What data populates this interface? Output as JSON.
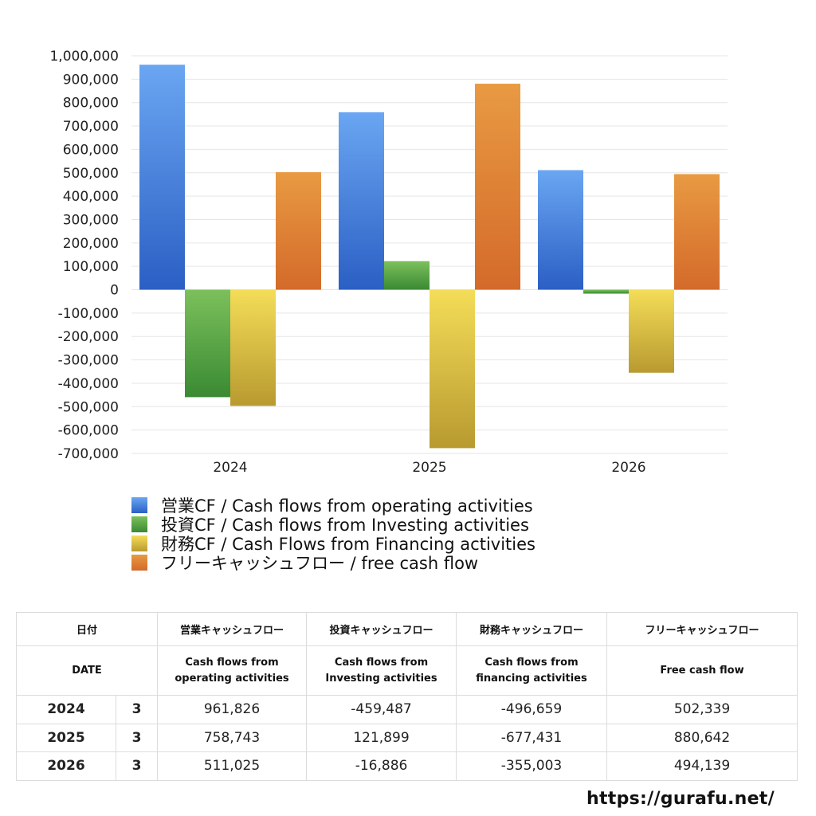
{
  "chart_data": {
    "type": "bar",
    "categories": [
      "2024",
      "2025",
      "2026"
    ],
    "series": [
      {
        "name": "営業CF / Cash flows from operating activities",
        "values": [
          961826,
          758743,
          511025
        ]
      },
      {
        "name": "投資CF / Cash flows from Investing activities",
        "values": [
          -459487,
          121899,
          -16886
        ]
      },
      {
        "name": "財務CF / Cash Flows from Financing activities",
        "values": [
          -496659,
          -677431,
          -355003
        ]
      },
      {
        "name": "フリーキャッシュフロー / free cash flow",
        "values": [
          502339,
          880642,
          494139
        ]
      }
    ],
    "ylim": [
      -700000,
      1000000
    ],
    "yticks": [
      "1,000,000",
      "900,000",
      "800,000",
      "700,000",
      "600,000",
      "500,000",
      "400,000",
      "300,000",
      "200,000",
      "100,000",
      "0",
      "-100,000",
      "-200,000",
      "-300,000",
      "-400,000",
      "-500,000",
      "-600,000",
      "-700,000"
    ],
    "ytick_values": [
      1000000,
      900000,
      800000,
      700000,
      600000,
      500000,
      400000,
      300000,
      200000,
      100000,
      0,
      -100000,
      -200000,
      -300000,
      -400000,
      -500000,
      -600000,
      -700000
    ],
    "grid": true,
    "legend_position": "bottom",
    "colors": [
      {
        "top": "#6aa6f2",
        "bottom": "#2b5fc4"
      },
      {
        "top": "#7cc05c",
        "bottom": "#3a8a33"
      },
      {
        "top": "#f4dd58",
        "bottom": "#b89a30"
      },
      {
        "top": "#e89a42",
        "bottom": "#d46a2a"
      }
    ]
  },
  "table": {
    "header1": {
      "date": "日付",
      "op": "営業キャッシュフロー",
      "inv": "投資キャッシュフロー",
      "fin": "財務キャッシュフロー",
      "free": "フリーキャッシュフロー"
    },
    "header2": {
      "date": "DATE",
      "op_l1": "Cash flows from",
      "op_l2": "operating activities",
      "inv_l1": "Cash flows from",
      "inv_l2": "Investing activities",
      "fin_l1": "Cash flows from",
      "fin_l2": "financing activities",
      "free": "Free cash flow"
    },
    "rows": [
      {
        "year": "2024",
        "month": "3",
        "op": "961,826",
        "inv": "-459,487",
        "fin": "-496,659",
        "free": "502,339"
      },
      {
        "year": "2025",
        "month": "3",
        "op": "758,743",
        "inv": "121,899",
        "fin": "-677,431",
        "free": "880,642"
      },
      {
        "year": "2026",
        "month": "3",
        "op": "511,025",
        "inv": "-16,886",
        "fin": "-355,003",
        "free": "494,139"
      }
    ]
  },
  "site_url": "https://gurafu.net/"
}
